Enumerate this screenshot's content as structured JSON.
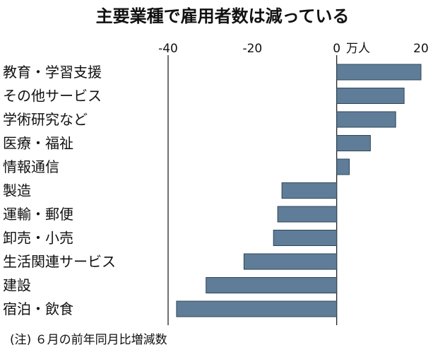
{
  "chart_data": {
    "type": "bar",
    "orientation": "horizontal",
    "title": "主要業種で雇用者数は減っている",
    "unit_label": "万人",
    "categories": [
      "教育・学習支援",
      "その他サービス",
      "学術研究など",
      "医療・福祉",
      "情報通信",
      "製造",
      "運輸・郵便",
      "卸売・小売",
      "生活関連サービス",
      "建設",
      "宿泊・飲食"
    ],
    "values": [
      20,
      16,
      14,
      8,
      3,
      -13,
      -14,
      -15,
      -22,
      -31,
      -38
    ],
    "xlim": [
      -40,
      20
    ],
    "xticks": [
      -40,
      -20,
      0,
      20
    ],
    "xtick_labels": [
      "-40",
      "-20",
      "0",
      "20"
    ],
    "grid": false,
    "colors": {
      "bar": "#5f7d98",
      "bar_edge": "#2f4658"
    },
    "note": "(注) ６月の前年同月比増減数"
  }
}
